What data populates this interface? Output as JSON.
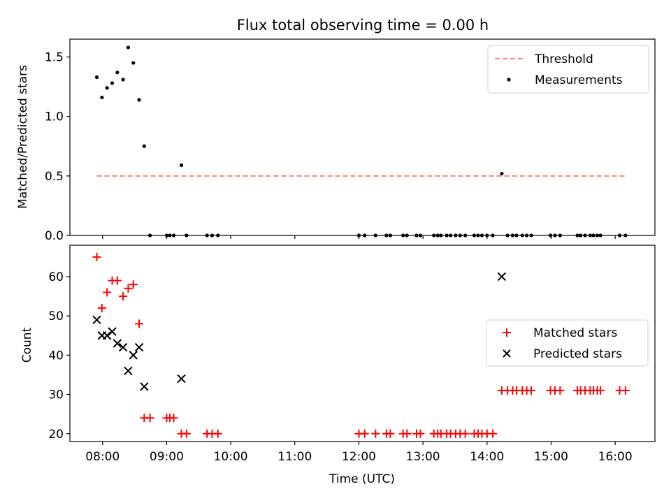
{
  "figure": {
    "title": "Flux total observing time = 0.00 h"
  },
  "chart_data": [
    {
      "type": "scatter",
      "panel": "top",
      "ylabel": "Matched/Predicted stars",
      "xlabel": "",
      "ylim": [
        0,
        1.65
      ],
      "yticks": [
        0.0,
        0.5,
        1.0,
        1.5
      ],
      "ytick_labels": [
        "0.0",
        "0.5",
        "1.0",
        "1.5"
      ],
      "legend_position": "top-right",
      "threshold": {
        "name": "Threshold",
        "value": 0.5,
        "x_start": 7.91,
        "x_end": 16.15,
        "color": "#ff7f7f",
        "style": "dashed"
      },
      "series": [
        {
          "name": "Measurements",
          "color": "#000000",
          "marker": "dot",
          "x": [
            7.91,
            7.99,
            8.07,
            8.15,
            8.23,
            8.32,
            8.4,
            8.48,
            8.57,
            8.65,
            8.74,
            9.0,
            9.05,
            9.11,
            9.23,
            9.31,
            9.63,
            9.71,
            9.8,
            12.0,
            12.09,
            12.26,
            12.43,
            12.49,
            12.69,
            12.75,
            12.9,
            12.96,
            13.17,
            13.23,
            13.28,
            13.37,
            13.43,
            13.51,
            13.58,
            13.66,
            13.8,
            13.86,
            13.92,
            14.0,
            14.09,
            14.23,
            14.32,
            14.4,
            14.46,
            14.55,
            14.62,
            14.69,
            14.99,
            15.06,
            15.14,
            15.41,
            15.46,
            15.53,
            15.61,
            15.66,
            15.72,
            15.77,
            16.07,
            16.16
          ],
          "y": [
            1.33,
            1.16,
            1.24,
            1.28,
            1.37,
            1.31,
            1.58,
            1.45,
            1.14,
            0.75,
            0,
            0,
            0,
            0,
            0.59,
            0,
            0,
            0,
            0,
            0,
            0,
            0,
            0,
            0,
            0,
            0,
            0,
            0,
            0,
            0,
            0,
            0,
            0,
            0,
            0,
            0,
            0,
            0,
            0,
            0,
            0,
            0.52,
            0,
            0,
            0,
            0,
            0,
            0,
            0,
            0,
            0,
            0,
            0,
            0,
            0,
            0,
            0,
            0,
            0,
            0
          ]
        }
      ]
    },
    {
      "type": "scatter",
      "panel": "bottom",
      "ylabel": "Count",
      "xlabel": "Time (UTC)",
      "xlim": [
        7.49,
        16.62
      ],
      "ylim": [
        18,
        68
      ],
      "yticks": [
        20,
        30,
        40,
        50,
        60
      ],
      "ytick_labels": [
        "20",
        "30",
        "40",
        "50",
        "60"
      ],
      "xticks": [
        8,
        9,
        10,
        11,
        12,
        13,
        14,
        15,
        16
      ],
      "xtick_labels": [
        "08:00",
        "09:00",
        "10:00",
        "11:00",
        "12:00",
        "13:00",
        "14:00",
        "15:00",
        "16:00"
      ],
      "legend_position": "center-right",
      "series": [
        {
          "name": "Matched stars",
          "color": "#ff0000",
          "marker": "plus",
          "x": [
            7.91,
            7.99,
            8.07,
            8.15,
            8.23,
            8.32,
            8.4,
            8.48,
            8.57,
            8.65,
            8.74,
            9.0,
            9.05,
            9.11,
            9.23,
            9.31,
            9.63,
            9.71,
            9.8,
            12.0,
            12.09,
            12.26,
            12.43,
            12.49,
            12.69,
            12.75,
            12.9,
            12.96,
            13.17,
            13.23,
            13.28,
            13.37,
            13.43,
            13.51,
            13.58,
            13.66,
            13.8,
            13.86,
            13.92,
            14.0,
            14.09,
            14.23,
            14.32,
            14.4,
            14.46,
            14.55,
            14.62,
            14.69,
            14.99,
            15.06,
            15.14,
            15.41,
            15.46,
            15.53,
            15.61,
            15.66,
            15.72,
            15.77,
            16.07,
            16.16
          ],
          "y": [
            65,
            52,
            56,
            59,
            59,
            55,
            57,
            58,
            48,
            24,
            24,
            24,
            24,
            24,
            20,
            20,
            20,
            20,
            20,
            20,
            20,
            20,
            20,
            20,
            20,
            20,
            20,
            20,
            20,
            20,
            20,
            20,
            20,
            20,
            20,
            20,
            20,
            20,
            20,
            20,
            20,
            31,
            31,
            31,
            31,
            31,
            31,
            31,
            31,
            31,
            31,
            31,
            31,
            31,
            31,
            31,
            31,
            31,
            31,
            31
          ]
        },
        {
          "name": "Predicted stars",
          "color": "#000000",
          "marker": "x",
          "x": [
            7.91,
            7.99,
            8.07,
            8.15,
            8.23,
            8.32,
            8.4,
            8.48,
            8.57,
            8.65,
            9.23,
            14.23
          ],
          "y": [
            49,
            45,
            45,
            46,
            43,
            42,
            36,
            40,
            42,
            32,
            34,
            60
          ]
        }
      ]
    }
  ]
}
